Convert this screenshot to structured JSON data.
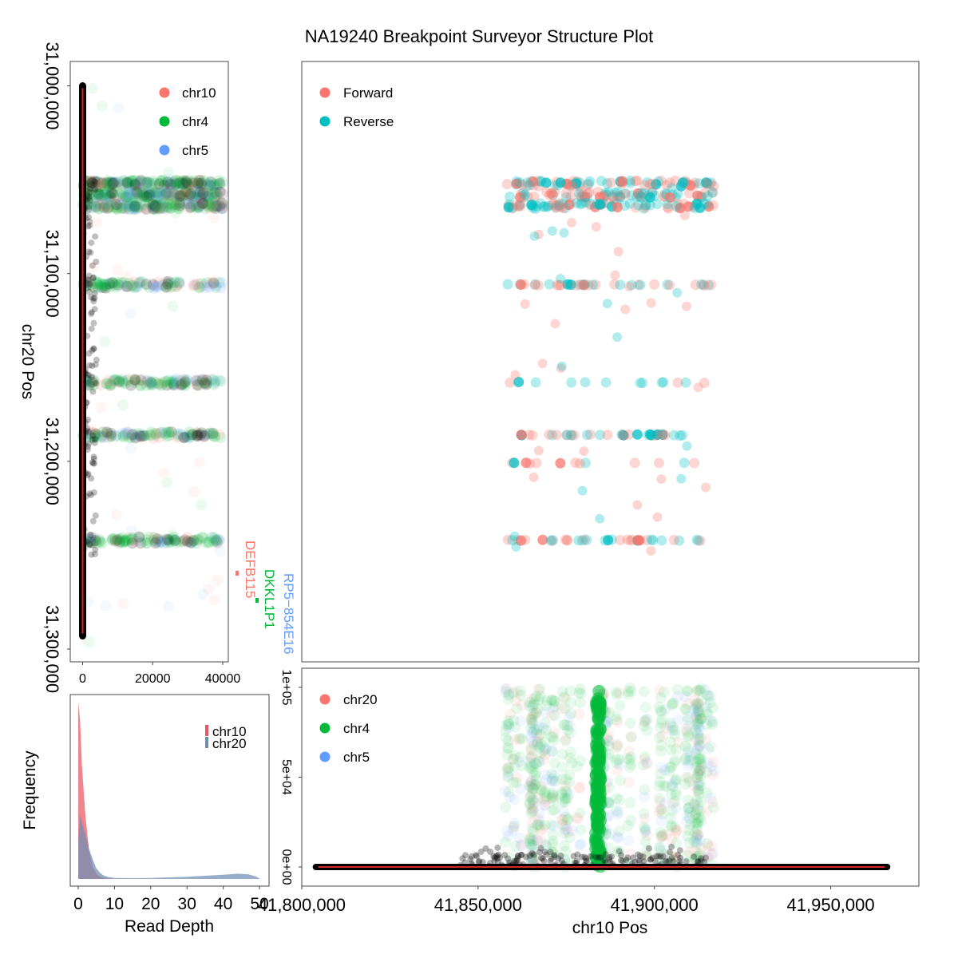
{
  "title": "NA19240 Breakpoint Surveyor Structure Plot",
  "colors": {
    "red": "#F8766D",
    "green": "#00BA38",
    "blue": "#619CFF",
    "cyan": "#00BFC4",
    "black": "#000000",
    "line_red": "#d62728",
    "hist_red": "#E8555F",
    "hist_blue": "#6D8FB5"
  },
  "chart_data": [
    {
      "id": "vertical-depth",
      "type": "scatter",
      "ylabel": "chr20 Pos",
      "xlim": [
        -3000,
        41000
      ],
      "ylim": [
        31000000,
        31300000
      ],
      "y_reversed": true,
      "xticks": [
        0,
        20000,
        40000
      ],
      "xtick_labels": [
        "0",
        "20000",
        "40000"
      ],
      "yticks": [
        31000000,
        31100000,
        31200000,
        31300000
      ],
      "ytick_labels": [
        "31,000,000",
        "31,100,000",
        "31,200,000",
        "31,300,000"
      ],
      "legend": {
        "position": "top-right",
        "entries": [
          "chr10",
          "chr4",
          "chr5"
        ]
      },
      "series": [
        {
          "name": "chr10",
          "color": "#F8766D"
        },
        {
          "name": "chr4",
          "color": "#00BA38"
        },
        {
          "name": "chr5",
          "color": "#619CFF"
        }
      ],
      "depth_line": {
        "x": 0,
        "y_range": [
          31000000,
          31293000
        ]
      },
      "read_bands": [
        {
          "y": 31052000,
          "x_range": [
            0,
            40000
          ],
          "density": "high"
        },
        {
          "y": 31058000,
          "x_range": [
            0,
            40000
          ],
          "density": "high"
        },
        {
          "y": 31064000,
          "x_range": [
            0,
            40000
          ],
          "density": "high"
        },
        {
          "y": 31106000,
          "x_range": [
            0,
            40000
          ],
          "density": "medium"
        },
        {
          "y": 31158000,
          "x_range": [
            0,
            40000
          ],
          "density": "medium"
        },
        {
          "y": 31186000,
          "x_range": [
            0,
            40000
          ],
          "density": "medium"
        },
        {
          "y": 31242000,
          "x_range": [
            0,
            40000
          ],
          "density": "medium"
        }
      ]
    },
    {
      "id": "structure",
      "type": "scatter",
      "xlim": [
        41800000,
        41975000
      ],
      "ylim": [
        31000000,
        31300000
      ],
      "y_reversed": true,
      "legend": {
        "position": "top-left",
        "entries": [
          "Forward",
          "Reverse"
        ]
      },
      "series": [
        {
          "name": "Forward",
          "color": "#F8766D"
        },
        {
          "name": "Reverse",
          "color": "#00BFC4"
        }
      ],
      "x_range": [
        41858000,
        41917000
      ],
      "read_rows": [
        {
          "y": 31052000,
          "density": "high"
        },
        {
          "y": 31058000,
          "density": "high"
        },
        {
          "y": 31064000,
          "density": "high"
        },
        {
          "y": 31106000,
          "density": "medium"
        },
        {
          "y": 31158000,
          "density": "low"
        },
        {
          "y": 31186000,
          "density": "medium"
        },
        {
          "y": 31201000,
          "density": "low"
        },
        {
          "y": 31242000,
          "density": "medium"
        }
      ]
    },
    {
      "id": "horizontal-depth",
      "type": "scatter",
      "xlabel": "chr10 Pos",
      "xlim": [
        41800000,
        41975000
      ],
      "ylim": [
        0,
        105000
      ],
      "xticks": [
        41800000,
        41850000,
        41900000,
        41950000
      ],
      "xtick_labels": [
        "41,800,000",
        "41,850,000",
        "41,900,000",
        "41,950,000"
      ],
      "yticks": [
        0,
        50000,
        100000
      ],
      "ytick_labels": [
        "0e+00",
        "5e+04",
        "1e+05"
      ],
      "legend": {
        "position": "top-left",
        "entries": [
          "chr20",
          "chr4",
          "chr5"
        ]
      },
      "series": [
        {
          "name": "chr20",
          "color": "#F8766D"
        },
        {
          "name": "chr4",
          "color": "#00BA38"
        },
        {
          "name": "chr5",
          "color": "#619CFF"
        }
      ],
      "depth_line": {
        "y": 0,
        "x_range": [
          41804000,
          41966000
        ]
      },
      "dense_column": {
        "x": 41884000,
        "y_range": [
          0,
          100000
        ]
      }
    },
    {
      "id": "read-depth-histogram",
      "type": "area",
      "xlabel": "Read Depth",
      "ylabel": "Frequency",
      "xlim": [
        -1.5,
        50
      ],
      "xticks": [
        0,
        10,
        20,
        30,
        40,
        50
      ],
      "xtick_labels": [
        "0",
        "10",
        "20",
        "30",
        "40",
        "50"
      ],
      "legend": {
        "position": "top-right",
        "entries": [
          "chr10",
          "chr20"
        ]
      },
      "series": [
        {
          "name": "chr10",
          "color": "#E8555F",
          "x": [
            0,
            0.5,
            1,
            2,
            3,
            4,
            5,
            6,
            8,
            10,
            50
          ],
          "y": [
            1.0,
            0.9,
            0.65,
            0.35,
            0.16,
            0.07,
            0.03,
            0.012,
            0.004,
            0.0,
            0.0
          ]
        },
        {
          "name": "chr20",
          "color": "#6D8FB5",
          "x": [
            0,
            0.5,
            1,
            2,
            3,
            4,
            5,
            6,
            7,
            8,
            10,
            15,
            20,
            30,
            40,
            44,
            47,
            49,
            50
          ],
          "y": [
            0.2,
            0.36,
            0.32,
            0.25,
            0.17,
            0.11,
            0.06,
            0.035,
            0.02,
            0.012,
            0.006,
            0.005,
            0.006,
            0.012,
            0.024,
            0.03,
            0.026,
            0.014,
            0.003
          ]
        }
      ]
    }
  ],
  "annotations": [
    {
      "label": "DEFB115",
      "color": "#F8766D"
    },
    {
      "label": "DKKL1P1",
      "color": "#00BA38"
    },
    {
      "label": "RP5−854E16",
      "color": "#619CFF"
    }
  ]
}
